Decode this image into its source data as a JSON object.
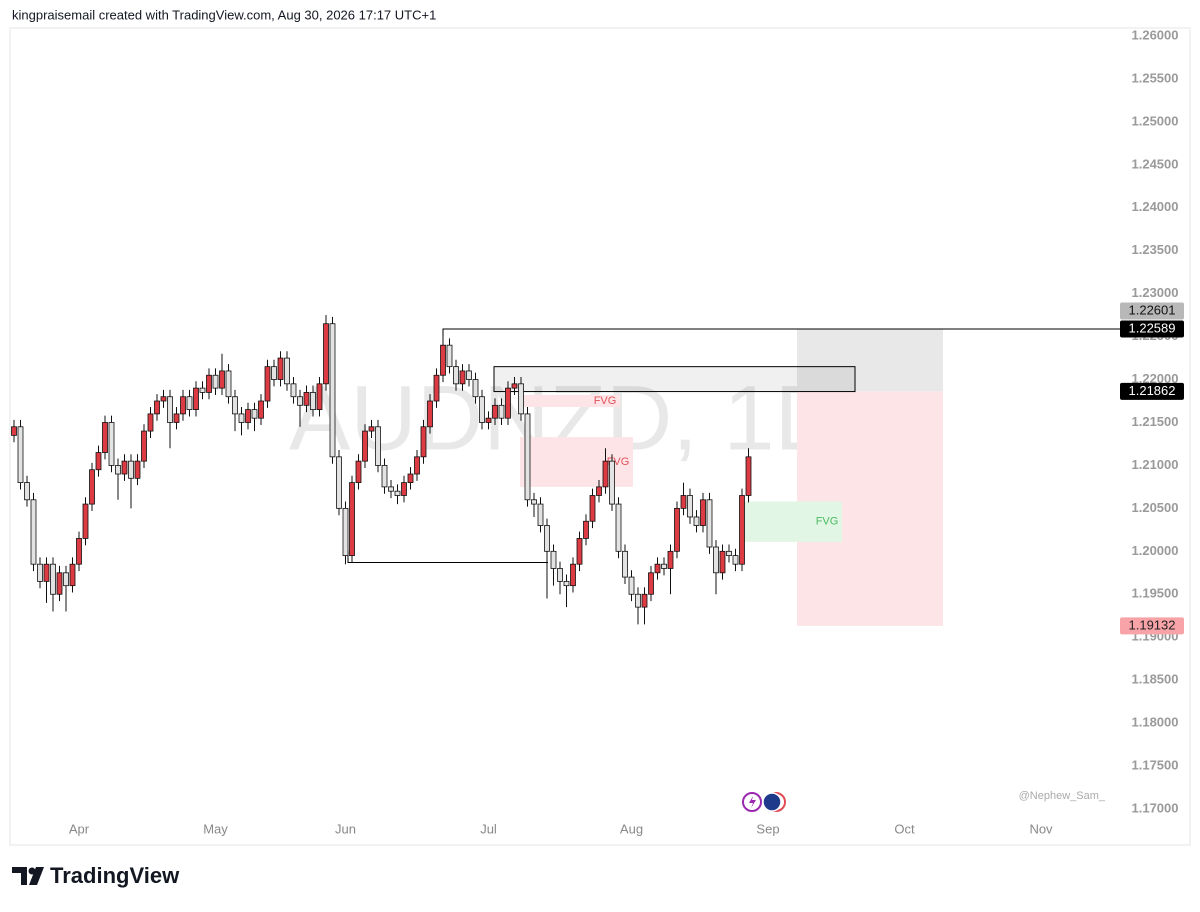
{
  "header": "kingpraisemail created with TradingView.com, Aug 30, 2026 17:17 UTC+1",
  "brand": "TradingView",
  "credit": "@Nephew_Sam_",
  "chart_data": {
    "type": "candlestick",
    "title": "AUDNZD, 1D",
    "up_color": "#dc3b44",
    "down_color": "#e3e3e3",
    "categories": [
      null,
      null,
      null,
      null,
      null,
      null,
      null,
      null,
      null,
      null,
      "Apr",
      null,
      null,
      null,
      null,
      null,
      null,
      null,
      null,
      null,
      null,
      null,
      null,
      null,
      null,
      null,
      null,
      null,
      null,
      null,
      null,
      "May",
      null,
      null,
      null,
      null,
      null,
      null,
      null,
      null,
      null,
      null,
      null,
      null,
      null,
      null,
      null,
      null,
      null,
      null,
      null,
      "Jun",
      null,
      null,
      null,
      null,
      null,
      null,
      null,
      null,
      null,
      null,
      null,
      null,
      null,
      null,
      null,
      null,
      null,
      null,
      null,
      null,
      null,
      "Jul",
      null,
      null,
      null,
      null,
      null,
      null,
      null,
      null,
      null,
      null,
      null,
      null,
      null,
      null,
      null,
      null,
      null,
      null,
      null,
      null,
      null,
      "Aug",
      null,
      null,
      null,
      null,
      null,
      null,
      null,
      null,
      null,
      null,
      null,
      null,
      null,
      null,
      null,
      null,
      null,
      null,
      null,
      null,
      "Sep",
      null,
      null,
      null,
      null,
      null,
      null,
      null,
      null,
      null,
      null,
      null,
      null,
      null,
      null,
      null,
      null,
      null,
      null,
      null,
      null,
      "Oct",
      null,
      null,
      null,
      null,
      null,
      null,
      null,
      null,
      null,
      null,
      null,
      null,
      null,
      null,
      null,
      null,
      null,
      null,
      null,
      null,
      "Nov",
      null,
      null,
      null,
      null,
      null,
      null,
      null,
      null,
      null
    ],
    "open": [
      1.2135,
      1.2145,
      1.208,
      1.206,
      1.1985,
      1.1965,
      1.1985,
      1.195,
      1.1975,
      1.196,
      1.1985,
      1.2015,
      1.2055,
      1.2095,
      1.2115,
      1.215,
      1.21,
      1.209,
      1.2105,
      1.2085,
      1.2105,
      1.214,
      1.216,
      1.2175,
      1.218,
      1.215,
      1.216,
      1.218,
      1.2165,
      1.219,
      1.2185,
      1.2205,
      1.219,
      1.221,
      1.218,
      1.216,
      1.215,
      1.2165,
      1.2155,
      1.2175,
      1.2215,
      1.22,
      1.2225,
      1.2195,
      1.218,
      1.217,
      1.2185,
      1.2165,
      1.2195,
      1.2265,
      1.211,
      1.205,
      1.1995,
      1.208,
      1.2105,
      1.214,
      1.2145,
      1.21,
      1.2075,
      1.207,
      1.2065,
      1.208,
      1.209,
      1.211,
      1.2145,
      1.2175,
      1.2205,
      1.224,
      1.2215,
      1.2195,
      1.221,
      1.22,
      1.218,
      1.215,
      1.2155,
      1.217,
      1.2155,
      1.219,
      1.2195,
      1.216,
      1.206,
      1.2055,
      1.203,
      1.2,
      1.198,
      1.1965,
      1.196,
      1.1985,
      1.2015,
      1.2035,
      1.2065,
      1.2075,
      1.2105,
      1.2055,
      1.2,
      1.197,
      1.195,
      1.1935,
      1.195,
      1.1975,
      1.1985,
      1.198,
      1.2,
      1.205,
      1.2065,
      1.204,
      1.203,
      1.206,
      1.2005,
      1.1975,
      1.2,
      1.1995,
      1.1985,
      1.2065,
      null,
      null,
      null,
      null,
      null,
      null,
      null,
      null,
      null,
      null,
      null,
      null,
      null,
      null,
      null,
      null,
      null,
      null,
      null,
      null,
      null,
      null,
      null,
      null,
      null,
      null,
      null,
      null,
      null,
      null,
      null,
      null,
      null,
      null,
      null,
      null,
      null,
      null,
      null,
      null,
      null,
      null,
      null,
      null,
      null,
      null,
      null,
      null,
      null,
      null,
      null,
      null,
      null,
      null
    ],
    "high": [
      1.2153,
      1.2153,
      1.2088,
      1.2068,
      1.1993,
      1.1993,
      1.1993,
      1.1983,
      1.1983,
      1.1993,
      1.2023,
      1.2063,
      1.2103,
      1.2123,
      1.2158,
      1.2158,
      1.2108,
      1.2113,
      1.2113,
      1.2113,
      1.2148,
      1.2168,
      1.2183,
      1.2188,
      1.2188,
      1.2168,
      1.2188,
      1.2188,
      1.2198,
      1.2198,
      1.2213,
      1.2213,
      1.223,
      1.2218,
      1.2188,
      1.2168,
      1.2173,
      1.2173,
      1.2183,
      1.2223,
      1.2223,
      1.2233,
      1.2233,
      1.2203,
      1.2188,
      1.2193,
      1.2193,
      1.2203,
      1.2275,
      1.2273,
      1.2118,
      1.2058,
      1.2088,
      1.2113,
      1.2148,
      1.2153,
      1.2153,
      1.2108,
      1.2083,
      1.2078,
      1.2088,
      1.2098,
      1.2118,
      1.2153,
      1.2183,
      1.2213,
      1.225,
      1.2248,
      1.2223,
      1.2218,
      1.2218,
      1.2208,
      1.2188,
      1.2163,
      1.2178,
      1.2178,
      1.2198,
      1.2203,
      1.2203,
      1.2168,
      1.2068,
      1.2063,
      1.2038,
      1.2008,
      1.1988,
      1.1973,
      1.1993,
      1.2023,
      1.2043,
      1.2073,
      1.2083,
      1.212,
      1.2113,
      1.2063,
      1.2008,
      1.1978,
      1.1958,
      1.1958,
      1.1983,
      1.1993,
      1.1993,
      1.2008,
      1.2058,
      1.208,
      1.2073,
      1.2048,
      1.2068,
      1.2068,
      1.2013,
      1.2008,
      1.2008,
      1.2003,
      1.2073,
      1.212,
      null,
      null,
      null,
      null,
      null,
      null,
      null,
      null,
      null,
      null,
      null,
      null,
      null,
      null,
      null,
      null,
      null,
      null,
      null,
      null,
      null,
      null,
      null,
      null,
      null,
      null,
      null,
      null,
      null,
      null,
      null,
      null,
      null,
      null,
      null,
      null,
      null,
      null,
      null,
      null,
      null,
      null,
      null,
      null,
      null,
      null,
      null,
      null,
      null,
      null,
      null,
      null,
      null,
      null
    ],
    "low": [
      1.2127,
      1.2072,
      1.2052,
      1.1977,
      1.1957,
      1.194,
      1.193,
      1.1942,
      1.193,
      1.1952,
      1.1977,
      1.2007,
      1.2047,
      1.2087,
      1.2107,
      1.2092,
      1.206,
      1.2082,
      1.205,
      1.2077,
      1.2097,
      1.2132,
      1.2152,
      1.2167,
      1.212,
      1.2142,
      1.2152,
      1.2157,
      1.2157,
      1.2177,
      1.2177,
      1.2182,
      1.2182,
      1.2172,
      1.214,
      1.2135,
      1.2142,
      1.214,
      1.2147,
      1.2167,
      1.2192,
      1.2192,
      1.2187,
      1.2172,
      1.2145,
      1.2162,
      1.2157,
      1.2157,
      1.2187,
      1.2102,
      1.2042,
      1.1985,
      1.1987,
      1.2072,
      1.2097,
      1.2132,
      1.2092,
      1.2067,
      1.2062,
      1.2055,
      1.2057,
      1.2072,
      1.2082,
      1.2102,
      1.2137,
      1.2167,
      1.2197,
      1.2207,
      1.2187,
      1.2187,
      1.2192,
      1.2172,
      1.2142,
      1.2142,
      1.2147,
      1.2147,
      1.2147,
      1.2182,
      1.2152,
      1.2052,
      1.204,
      1.2022,
      1.1945,
      1.196,
      1.195,
      1.1935,
      1.1952,
      1.1977,
      1.2007,
      1.2027,
      1.2057,
      1.2067,
      1.2047,
      1.1992,
      1.1962,
      1.1942,
      1.1915,
      1.1915,
      1.1942,
      1.1967,
      1.1972,
      1.195,
      1.1992,
      1.2042,
      1.2032,
      1.2022,
      1.2022,
      1.1997,
      1.195,
      1.1967,
      1.1987,
      1.1977,
      1.1977,
      1.2057,
      null,
      null,
      null,
      null,
      null,
      null,
      null,
      null,
      null,
      null,
      null,
      null,
      null,
      null,
      null,
      null,
      null,
      null,
      null,
      null,
      null,
      null,
      null,
      null,
      null,
      null,
      null,
      null,
      null,
      null,
      null,
      null,
      null,
      null,
      null,
      null,
      null,
      null,
      null,
      null,
      null,
      null,
      null,
      null,
      null,
      null,
      null,
      null,
      null,
      null,
      null,
      null,
      null,
      null
    ],
    "close": [
      1.2145,
      1.208,
      1.206,
      1.1985,
      1.1965,
      1.1985,
      1.195,
      1.1975,
      1.196,
      1.1985,
      1.2015,
      1.2055,
      1.2095,
      1.2115,
      1.215,
      1.21,
      1.209,
      1.2105,
      1.2085,
      1.2105,
      1.214,
      1.216,
      1.2175,
      1.218,
      1.215,
      1.216,
      1.218,
      1.2165,
      1.219,
      1.2185,
      1.2205,
      1.219,
      1.221,
      1.218,
      1.216,
      1.215,
      1.2165,
      1.2155,
      1.2175,
      1.2215,
      1.22,
      1.2225,
      1.2195,
      1.218,
      1.217,
      1.2185,
      1.2165,
      1.2195,
      1.2265,
      1.211,
      1.205,
      1.1995,
      1.208,
      1.2105,
      1.214,
      1.2145,
      1.21,
      1.2075,
      1.207,
      1.2065,
      1.208,
      1.209,
      1.211,
      1.2145,
      1.2175,
      1.2205,
      1.224,
      1.2215,
      1.2195,
      1.221,
      1.22,
      1.218,
      1.215,
      1.2155,
      1.217,
      1.2155,
      1.219,
      1.2195,
      1.216,
      1.206,
      1.2055,
      1.203,
      1.2,
      1.198,
      1.1965,
      1.196,
      1.1985,
      1.2015,
      1.2035,
      1.2065,
      1.2075,
      1.2105,
      1.2055,
      1.2,
      1.197,
      1.195,
      1.1935,
      1.195,
      1.1975,
      1.1985,
      1.198,
      1.2,
      1.205,
      1.2065,
      1.204,
      1.203,
      1.206,
      1.2005,
      1.1975,
      1.2,
      1.1995,
      1.1985,
      1.2065,
      1.211,
      null,
      null,
      null,
      null,
      null,
      null,
      null,
      null,
      null,
      null,
      null,
      null,
      null,
      null,
      null,
      null,
      null,
      null,
      null,
      null,
      null,
      null,
      null,
      null,
      null,
      null,
      null,
      null,
      null,
      null,
      null,
      null,
      null,
      null,
      null,
      null,
      null,
      null,
      null,
      null,
      null,
      null,
      null,
      null,
      null,
      null,
      null,
      null,
      null,
      null,
      null,
      null,
      null,
      null
    ],
    "ylim": [
      1.16895,
      1.26093
    ],
    "yticks": [
      {
        "value": 1.17,
        "label": "1.17000"
      },
      {
        "value": 1.175,
        "label": "1.17500"
      },
      {
        "value": 1.18,
        "label": "1.18000"
      },
      {
        "value": 1.185,
        "label": "1.18500"
      },
      {
        "value": 1.19,
        "label": "1.19000"
      },
      {
        "value": 1.195,
        "label": "1.19500"
      },
      {
        "value": 1.2,
        "label": "1.20000"
      },
      {
        "value": 1.205,
        "label": "1.20500"
      },
      {
        "value": 1.21,
        "label": "1.21000"
      },
      {
        "value": 1.215,
        "label": "1.21500"
      },
      {
        "value": 1.22,
        "label": "1.22000"
      },
      {
        "value": 1.225,
        "label": "1.22500"
      },
      {
        "value": 1.23,
        "label": "1.23000"
      },
      {
        "value": 1.235,
        "label": "1.23500"
      },
      {
        "value": 1.24,
        "label": "1.24000"
      },
      {
        "value": 1.245,
        "label": "1.24500"
      },
      {
        "value": 1.25,
        "label": "1.25000"
      },
      {
        "value": 1.255,
        "label": "1.25500"
      },
      {
        "value": 1.26,
        "label": "1.26000"
      }
    ],
    "grid": false,
    "price_tags": [
      {
        "value": 1.22601,
        "color": "#b8b8b8",
        "text_color": "#111111"
      },
      {
        "value": 1.22589,
        "color": "#000000",
        "text_color": "#ffffff"
      },
      {
        "value": 1.21862,
        "color": "#000000",
        "text_color": "#ffffff"
      },
      {
        "value": 1.19132,
        "color": "#f7a3a8",
        "text_color": "#222222"
      }
    ],
    "zones": [
      {
        "label": "FVG",
        "high": 1.2182,
        "low": 1.2168,
        "color": "#fde4e6",
        "label_color": "#e0525b"
      },
      {
        "label": "FVG",
        "high": 1.2133,
        "low": 1.2075,
        "color": "#fde4e6",
        "label_color": "#e0525b"
      },
      {
        "label": "FVG",
        "high": 1.2058,
        "low": 1.2011,
        "color": "#e2f6e5",
        "label_color": "#4cbb60"
      }
    ],
    "range_box": {
      "high": 1.2215,
      "low": 1.2186
    },
    "support_line": 1.1987
  }
}
